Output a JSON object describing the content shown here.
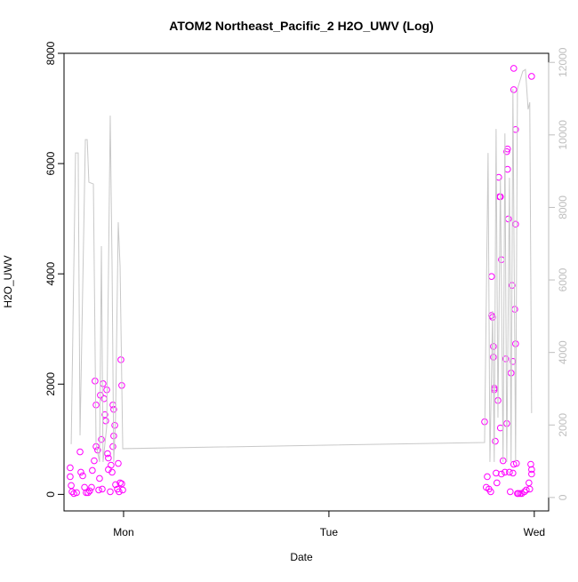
{
  "chart_data": {
    "type": "scatter",
    "title": "ATOM2 Northeast_Pacific_2 H2O_UWV (Log)",
    "x_label": "Date",
    "y_label": "H2O_UWV",
    "xlim": [
      0.71,
      3.07
    ],
    "xticks": [
      {
        "value": 1,
        "label": "Mon"
      },
      {
        "value": 2,
        "label": "Tue"
      },
      {
        "value": 3,
        "label": "Wed"
      }
    ],
    "ylim": [
      -300,
      8000
    ],
    "yticks": [
      0,
      2000,
      4000,
      6000,
      8000
    ],
    "y2lim": [
      -370,
      12250
    ],
    "y2ticks": [
      0,
      2000,
      4000,
      6000,
      8000,
      10000,
      12000
    ],
    "y2_color": "#bebebe",
    "series": [
      {
        "type": "scatter",
        "color": "#ff00ff",
        "x": [
          0.74,
          0.74,
          0.745,
          0.749,
          0.758,
          0.771,
          0.788,
          0.792,
          0.801,
          0.81,
          0.818,
          0.827,
          0.835,
          0.844,
          0.848,
          0.857,
          0.861,
          0.866,
          0.866,
          0.874,
          0.879,
          0.883,
          0.887,
          0.892,
          0.896,
          0.9,
          0.905,
          0.909,
          0.913,
          0.918,
          0.922,
          0.926,
          0.935,
          0.944,
          0.948,
          0.952,
          0.952,
          0.961,
          0.97,
          0.978,
          0.983,
          0.987,
          0.991,
          0.991,
          0.996,
          0.974,
          0.957,
          0.948,
          0.939,
          0.926,
          2.758,
          2.766,
          2.771,
          2.779,
          2.788,
          2.792,
          2.792,
          2.797,
          2.801,
          2.801,
          2.805,
          2.805,
          2.81,
          2.814,
          2.818,
          2.823,
          2.827,
          2.831,
          2.835,
          2.835,
          2.84,
          2.84,
          2.848,
          2.857,
          2.861,
          2.866,
          2.866,
          2.87,
          2.87,
          2.874,
          2.879,
          2.883,
          2.887,
          2.892,
          2.896,
          2.896,
          2.9,
          2.905,
          2.9,
          2.9,
          2.909,
          2.909,
          2.909,
          2.913,
          2.918,
          2.922,
          2.931,
          2.939,
          2.952,
          2.961,
          2.974,
          2.983,
          2.987,
          2.987,
          2.987,
          2.978
        ],
        "values": [
          482,
          321,
          161,
          48,
          16,
          32,
          771,
          402,
          337,
          129,
          32,
          32,
          64,
          129,
          434,
          610,
          2056,
          1622,
          867,
          803,
          80,
          289,
          1799,
          996,
          96,
          2008,
          1735,
          1446,
          1333,
          1896,
          739,
          659,
          48,
          402,
          1622,
          1060,
          1542,
          177,
          96,
          48,
          209,
          2442,
          193,
          1976,
          80,
          562,
          1253,
          867,
          530,
          450,
          1317,
          129,
          321,
          96,
          48,
          3952,
          3245,
          3213,
          2490,
          2683,
          1928,
          1896,
          964,
          386,
          209,
          1703,
          5751,
          5398,
          1205,
          5398,
          4257,
          369,
          610,
          402,
          2458,
          1285,
          6217,
          6265,
          5896,
          4996,
          402,
          48,
          2201,
          3791,
          2410,
          386,
          546,
          3357,
          7727,
          7341,
          6618,
          4900,
          2731,
          562,
          16,
          16,
          16,
          16,
          48,
          80,
          209,
          546,
          369,
          450,
          7582,
          96
        ]
      },
      {
        "type": "line",
        "axis": "y2",
        "color": "#c8c8c8",
        "x": [
          0.745,
          0.766,
          0.779,
          0.788,
          0.814,
          0.823,
          0.831,
          0.853,
          0.866,
          0.883,
          0.892,
          0.9,
          0.918,
          0.935,
          0.944,
          0.952,
          0.961,
          0.974,
          0.983,
          0.996,
          2.758,
          2.775,
          2.784,
          2.797,
          2.805,
          2.814,
          2.823,
          2.835,
          2.848,
          2.857,
          2.866,
          2.879,
          2.887,
          2.896,
          2.909,
          2.918,
          2.944,
          2.957,
          2.97,
          2.978,
          2.987
        ],
        "values": [
          1470,
          9503,
          9503,
          1714,
          9870,
          9870,
          8695,
          8646,
          1470,
          980,
          6931,
          980,
          1959,
          10531,
          6368,
          980,
          2204,
          7592,
          6368,
          1347,
          1518,
          9503,
          980,
          5143,
          980,
          10164,
          2204,
          8817,
          980,
          10042,
          980,
          8817,
          980,
          11266,
          980,
          11266,
          11756,
          11805,
          10703,
          10899,
          2327
        ]
      }
    ]
  }
}
